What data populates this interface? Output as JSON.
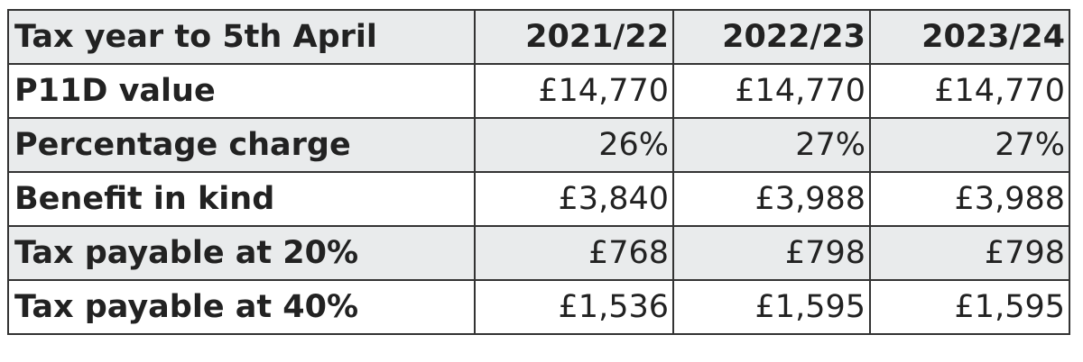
{
  "table": {
    "header": [
      "Tax year to 5th April",
      "2021/22",
      "2022/23",
      "2023/24"
    ],
    "rows": [
      [
        "P11D value",
        "£14,770",
        "£14,770",
        "£14,770"
      ],
      [
        "Percentage charge",
        "26%",
        "27%",
        "27%"
      ],
      [
        "Benefit in kind",
        "£3,840",
        "£3,988",
        "£3,988"
      ],
      [
        "Tax payable at 20%",
        "£768",
        "£798",
        "£798"
      ],
      [
        "Tax payable at 40%",
        "£1,536",
        "£1,595",
        "£1,595"
      ]
    ]
  }
}
